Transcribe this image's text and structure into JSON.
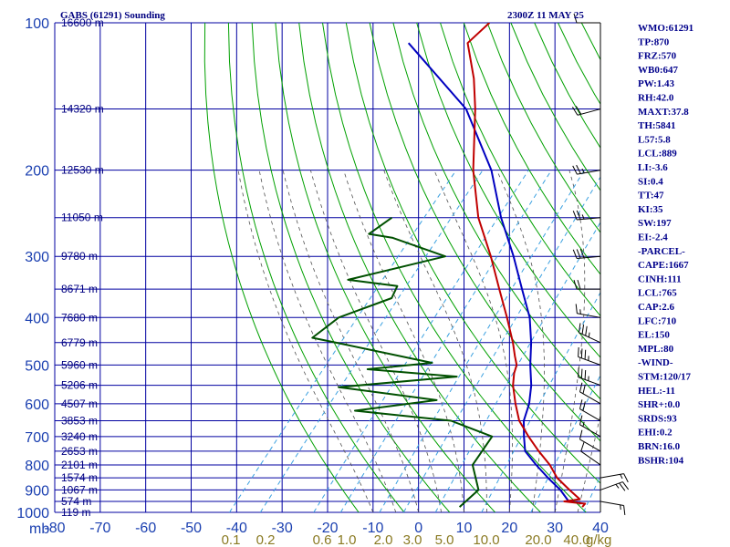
{
  "header": {
    "station": "GABS (61291) Sounding",
    "time": "2300Z 11 MAY 25"
  },
  "indices": [
    "WMO:61291",
    "TP:870",
    "FRZ:570",
    "WB0:647",
    "PW:1.43",
    "RH:42.0",
    "MAXT:37.8",
    "TH:5841",
    "L57:5.8",
    "LCL:889",
    "LI:-3.6",
    "SI:0.4",
    "TT:47",
    "KI:35",
    "SW:197",
    "EI:-2.4",
    "-PARCEL-",
    "CAPE:1667",
    "CINH:111",
    "LCL:765",
    "CAP:2.6",
    "LFC:710",
    "EL:150",
    "MPL:80",
    "-WIND-",
    "STM:120/17",
    "HEL:-11",
    "SHR+:0.0",
    "SRDS:93",
    "EHI:0.2",
    "BRN:16.0",
    "BSHR:104"
  ],
  "colors": {
    "grid": "#0000a0",
    "dry_adiabat": "#00a000",
    "moist_adiabat": "#505050",
    "mixing_ratio": "#3aa0e0",
    "temperature": "#c00000",
    "dewpoint": "#005000",
    "parcel": "#0000c0",
    "text": "#000080"
  },
  "chart_data": {
    "type": "skew-t log-p",
    "pressure_axis": {
      "label": "mb",
      "ticks": [
        "100",
        "200",
        "300",
        "400",
        "500",
        "600",
        "700",
        "800",
        "900",
        "1000"
      ],
      "range": [
        100,
        1000
      ],
      "scale": "log"
    },
    "temperature_axis": {
      "ticks": [
        "-80",
        "-70",
        "-60",
        "-50",
        "-40",
        "-30",
        "-20",
        "-10",
        "0",
        "10",
        "20",
        "30",
        "40"
      ],
      "range": [
        -80,
        40
      ]
    },
    "height_labels": [
      {
        "p": 100,
        "h": "16600 m"
      },
      {
        "p": 150,
        "h": "14320 m"
      },
      {
        "p": 200,
        "h": "12530 m"
      },
      {
        "p": 250,
        "h": "11050 m"
      },
      {
        "p": 300,
        "h": "9780 m"
      },
      {
        "p": 350,
        "h": "8671 m"
      },
      {
        "p": 400,
        "h": "7680 m"
      },
      {
        "p": 450,
        "h": "6779 m"
      },
      {
        "p": 500,
        "h": "5960 m"
      },
      {
        "p": 550,
        "h": "5206 m"
      },
      {
        "p": 600,
        "h": "4507 m"
      },
      {
        "p": 650,
        "h": "3853 m"
      },
      {
        "p": 700,
        "h": "3240 m"
      },
      {
        "p": 750,
        "h": "2653 m"
      },
      {
        "p": 800,
        "h": "2101 m"
      },
      {
        "p": 850,
        "h": "1574 m"
      },
      {
        "p": 900,
        "h": "1067 m"
      },
      {
        "p": 950,
        "h": "574 m"
      },
      {
        "p": 1000,
        "h": "119 m"
      }
    ],
    "mixing_ratio_labels": [
      "0.1",
      "0.2",
      "0.6",
      "1.0",
      "2.0",
      "3.0",
      "5.0",
      "10.0",
      "20.0",
      "40.0"
    ],
    "mixing_ratio_unit": "g/kg",
    "mixing_ratio_values": [
      0.1,
      0.2,
      0.6,
      1.0,
      2.0,
      3.0,
      5.0,
      10.0,
      20.0,
      40.0
    ],
    "series": [
      {
        "key": "temperature",
        "points": [
          {
            "p": 100,
            "t": -76
          },
          {
            "p": 110,
            "t": -77
          },
          {
            "p": 130,
            "t": -69
          },
          {
            "p": 150,
            "t": -63
          },
          {
            "p": 200,
            "t": -52
          },
          {
            "p": 250,
            "t": -42
          },
          {
            "p": 300,
            "t": -32
          },
          {
            "p": 350,
            "t": -24
          },
          {
            "p": 400,
            "t": -17
          },
          {
            "p": 450,
            "t": -11
          },
          {
            "p": 480,
            "t": -8
          },
          {
            "p": 500,
            "t": -6
          },
          {
            "p": 520,
            "t": -5
          },
          {
            "p": 550,
            "t": -3
          },
          {
            "p": 600,
            "t": 1
          },
          {
            "p": 650,
            "t": 5
          },
          {
            "p": 700,
            "t": 10
          },
          {
            "p": 750,
            "t": 15
          },
          {
            "p": 800,
            "t": 20
          },
          {
            "p": 850,
            "t": 24
          },
          {
            "p": 900,
            "t": 29
          },
          {
            "p": 940,
            "t": 33
          },
          {
            "p": 950,
            "t": 30
          },
          {
            "p": 960,
            "t": 35
          },
          {
            "p": 975,
            "t": 35
          }
        ]
      },
      {
        "key": "dewpoint",
        "points": [
          {
            "p": 250,
            "t": -61
          },
          {
            "p": 270,
            "t": -63
          },
          {
            "p": 275,
            "t": -57
          },
          {
            "p": 300,
            "t": -42
          },
          {
            "p": 320,
            "t": -52
          },
          {
            "p": 335,
            "t": -59
          },
          {
            "p": 345,
            "t": -47
          },
          {
            "p": 365,
            "t": -46
          },
          {
            "p": 400,
            "t": -54
          },
          {
            "p": 440,
            "t": -56
          },
          {
            "p": 455,
            "t": -47
          },
          {
            "p": 495,
            "t": -25
          },
          {
            "p": 510,
            "t": -38
          },
          {
            "p": 528,
            "t": -17
          },
          {
            "p": 555,
            "t": -41
          },
          {
            "p": 590,
            "t": -17
          },
          {
            "p": 620,
            "t": -33
          },
          {
            "p": 650,
            "t": -10
          },
          {
            "p": 700,
            "t": 2
          },
          {
            "p": 800,
            "t": 3
          },
          {
            "p": 900,
            "t": 9
          },
          {
            "p": 975,
            "t": 8
          }
        ]
      },
      {
        "key": "parcel",
        "points": [
          {
            "p": 110,
            "t": -90
          },
          {
            "p": 150,
            "t": -65
          },
          {
            "p": 200,
            "t": -48
          },
          {
            "p": 250,
            "t": -37
          },
          {
            "p": 300,
            "t": -27
          },
          {
            "p": 350,
            "t": -19
          },
          {
            "p": 400,
            "t": -12
          },
          {
            "p": 450,
            "t": -7
          },
          {
            "p": 500,
            "t": -3
          },
          {
            "p": 550,
            "t": 1
          },
          {
            "p": 600,
            "t": 4
          },
          {
            "p": 650,
            "t": 6
          },
          {
            "p": 700,
            "t": 9
          },
          {
            "p": 750,
            "t": 12
          },
          {
            "p": 800,
            "t": 17
          },
          {
            "p": 850,
            "t": 22
          },
          {
            "p": 900,
            "t": 27
          },
          {
            "p": 950,
            "t": 31
          }
        ]
      }
    ],
    "wind_barbs": [
      {
        "p": 100,
        "dir": 270,
        "kt": 10
      },
      {
        "p": 150,
        "dir": 255,
        "kt": 20
      },
      {
        "p": 200,
        "dir": 260,
        "kt": 25
      },
      {
        "p": 250,
        "dir": 265,
        "kt": 25
      },
      {
        "p": 300,
        "dir": 265,
        "kt": 30
      },
      {
        "p": 350,
        "dir": 270,
        "kt": 20
      },
      {
        "p": 400,
        "dir": 280,
        "kt": 15
      },
      {
        "p": 450,
        "dir": 295,
        "kt": 35
      },
      {
        "p": 500,
        "dir": 290,
        "kt": 35
      },
      {
        "p": 550,
        "dir": 290,
        "kt": 35
      },
      {
        "p": 600,
        "dir": 300,
        "kt": 20
      },
      {
        "p": 650,
        "dir": 300,
        "kt": 20
      },
      {
        "p": 700,
        "dir": 300,
        "kt": 15
      },
      {
        "p": 750,
        "dir": 300,
        "kt": 10
      },
      {
        "p": 800,
        "dir": 305,
        "kt": 10
      },
      {
        "p": 850,
        "dir": 80,
        "kt": 15
      },
      {
        "p": 900,
        "dir": 70,
        "kt": 25
      },
      {
        "p": 950,
        "dir": 100,
        "kt": 15
      }
    ]
  }
}
